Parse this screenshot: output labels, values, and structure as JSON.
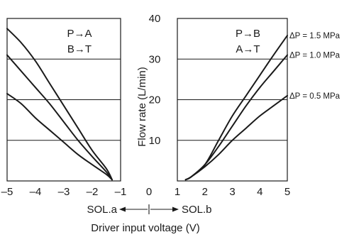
{
  "chart_data": {
    "type": "line",
    "title": "",
    "xlabel": "Driver input voltage (V)",
    "ylabel": "Flow rate (L/min)",
    "xlim": [
      -5,
      5
    ],
    "ylim": [
      0,
      40
    ],
    "x_ticks": [
      "–5",
      "–4",
      "–3",
      "–2",
      "–1",
      "0",
      "1",
      "2",
      "3",
      "4",
      "5"
    ],
    "y_ticks": [
      "10",
      "20",
      "30",
      "40"
    ],
    "grid": true,
    "left_annotation": [
      "P→A",
      "B→T"
    ],
    "right_annotation": [
      "P→B",
      "A→T"
    ],
    "direction_labels": {
      "left": "SOL.a",
      "right": "SOL.b"
    },
    "series": [
      {
        "name": "ΔP = 1.5 MPa",
        "left": [
          [
            -5,
            37.5
          ],
          [
            -4.5,
            34
          ],
          [
            -4,
            29.5
          ],
          [
            -3.5,
            24
          ],
          [
            -3,
            18.5
          ],
          [
            -2.5,
            13
          ],
          [
            -2,
            7.5
          ],
          [
            -1.5,
            3
          ],
          [
            -1.3,
            0.3
          ]
        ],
        "right": [
          [
            1.3,
            0.3
          ],
          [
            1.5,
            1
          ],
          [
            2,
            4
          ],
          [
            2.5,
            10
          ],
          [
            3,
            16
          ],
          [
            3.5,
            21
          ],
          [
            4,
            26
          ],
          [
            4.5,
            31
          ],
          [
            5,
            35.8
          ]
        ]
      },
      {
        "name": "ΔP = 1.0 MPa",
        "left": [
          [
            -5,
            31
          ],
          [
            -4.5,
            27
          ],
          [
            -4,
            23
          ],
          [
            -3.5,
            19
          ],
          [
            -3,
            14.5
          ],
          [
            -2.5,
            10
          ],
          [
            -2,
            6
          ],
          [
            -1.5,
            2.2
          ],
          [
            -1.3,
            0.3
          ]
        ],
        "right": [
          [
            1.3,
            0.3
          ],
          [
            1.5,
            1
          ],
          [
            2,
            4
          ],
          [
            2.5,
            8.5
          ],
          [
            3,
            13.5
          ],
          [
            3.5,
            18.5
          ],
          [
            4,
            23
          ],
          [
            4.5,
            27
          ],
          [
            5,
            31
          ]
        ]
      },
      {
        "name": "ΔP = 0.5 MPa",
        "left": [
          [
            -5,
            21.5
          ],
          [
            -4.5,
            19
          ],
          [
            -4,
            15.5
          ],
          [
            -3.5,
            12.5
          ],
          [
            -3,
            9.5
          ],
          [
            -2.5,
            6.5
          ],
          [
            -2,
            4
          ],
          [
            -1.5,
            1.6
          ],
          [
            -1.3,
            0.3
          ]
        ],
        "right": [
          [
            1.3,
            0.3
          ],
          [
            1.5,
            1
          ],
          [
            2,
            3.5
          ],
          [
            2.5,
            6.5
          ],
          [
            3,
            10
          ],
          [
            3.5,
            13
          ],
          [
            4,
            16
          ],
          [
            4.5,
            18.5
          ],
          [
            5,
            21
          ]
        ]
      }
    ]
  }
}
